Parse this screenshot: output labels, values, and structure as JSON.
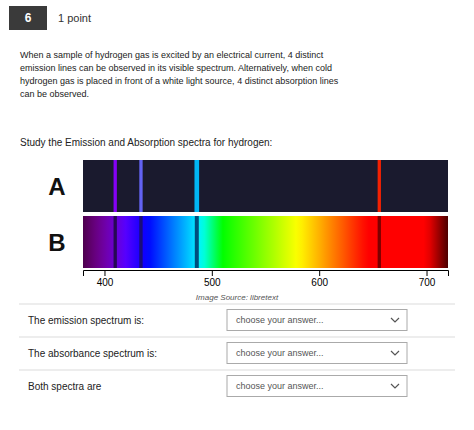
{
  "chart_data": {
    "type": "spectrum",
    "title": "Study the Emission and Absorption spectra for hydrogen:",
    "annotations": [
      "6",
      "1 point",
      "When a sample of hydrogen gas is excited by an electrical current, 4 distinct",
      "emission lines can be observed in its visible spectrum. Alternatively, when cold",
      "hydrogen gas is placed in front of a white light source, 4 distinct absorption lines",
      "can be observed.",
      "Image Source: libretext",
      "The emission spectrum is:",
      "The absorbance spectrum is:",
      "Both spectra are",
      "choose your answer..."
    ],
    "xlim": [
      380,
      720
    ],
    "xticks": [
      400,
      500,
      600,
      700
    ],
    "series": [
      {
        "name": "A",
        "type": "emission",
        "values": [
          410,
          434,
          486,
          656
        ],
        "colors": [
          "#8b00ff",
          "#6666ff",
          "#00bfff",
          "#ff2200"
        ]
      },
      {
        "name": "B",
        "type": "absorption",
        "values": [
          410,
          434,
          486,
          656
        ],
        "colors": [
          "#1a0a3d",
          "#1a1060",
          "#003366",
          "#660000"
        ]
      }
    ]
  }
}
